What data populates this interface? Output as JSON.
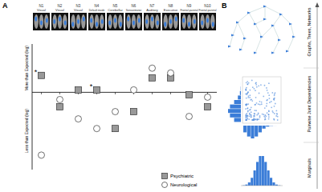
{
  "chart_data": {
    "type": "scatter",
    "panel_label": "A",
    "categories": [
      "N1",
      "N2",
      "N3",
      "N4",
      "N5",
      "N6",
      "N7",
      "N8",
      "N9",
      "N10"
    ],
    "network_labels": [
      "Visual",
      "Visual",
      "Visual",
      "Default mode",
      "Cerebellar",
      "Sensorimotor",
      "Auditory",
      "Executive",
      "Frontal-parietal",
      "Frontal-parietal"
    ],
    "series": [
      {
        "name": "Psychiatric",
        "marker": "square",
        "color": "#999999",
        "values": [
          0.35,
          -0.3,
          0.05,
          0.05,
          -0.75,
          -0.4,
          0.3,
          0.3,
          -0.05,
          -0.3
        ]
      },
      {
        "name": "Neurological",
        "marker": "circle",
        "color": "#ffffff",
        "values": [
          -1.3,
          -0.15,
          -0.55,
          -0.75,
          -0.4,
          0.05,
          0.5,
          0.4,
          -0.5,
          -0.1
        ]
      }
    ],
    "significance": [
      "*",
      null,
      null,
      "*",
      null,
      null,
      null,
      null,
      null,
      null
    ],
    "ylabel_top": "More than Expected (log)",
    "ylabel_bottom": "Less than Expected (log)",
    "baseline": 0,
    "ylim": [
      -1.6,
      1
    ],
    "yticks": [],
    "tick_labels": false,
    "legend": "lower right"
  },
  "panel_b": {
    "panel_label": "B",
    "levels": [
      "Graphs, Trees, Networks",
      "Pairwise Joint Dependencies",
      "Marginals"
    ]
  }
}
